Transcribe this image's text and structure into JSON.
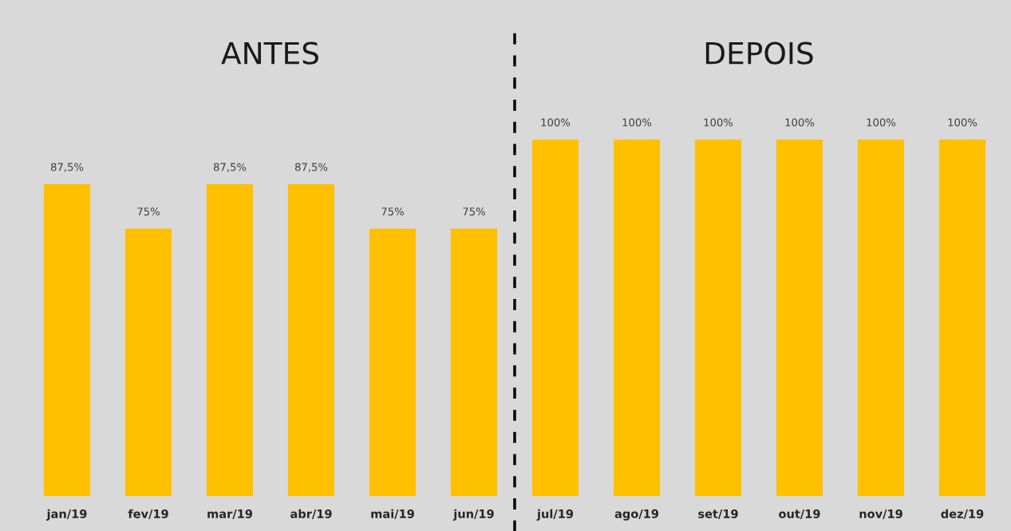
{
  "chart_data": {
    "type": "bar",
    "categories": [
      "jan/19",
      "fev/19",
      "mar/19",
      "abr/19",
      "mai/19",
      "jun/19",
      "jul/19",
      "ago/19",
      "set/19",
      "out/19",
      "nov/19",
      "dez/19"
    ],
    "values": [
      87.5,
      75,
      87.5,
      87.5,
      75,
      75,
      100,
      100,
      100,
      100,
      100,
      100
    ],
    "value_labels": [
      "87,5%",
      "75%",
      "87,5%",
      "87,5%",
      "75%",
      "75%",
      "100%",
      "100%",
      "100%",
      "100%",
      "100%",
      "100%"
    ],
    "color": "#ffc000",
    "annotations": [
      "ANTES",
      "DEPOIS"
    ],
    "grid": false,
    "legend": false
  }
}
